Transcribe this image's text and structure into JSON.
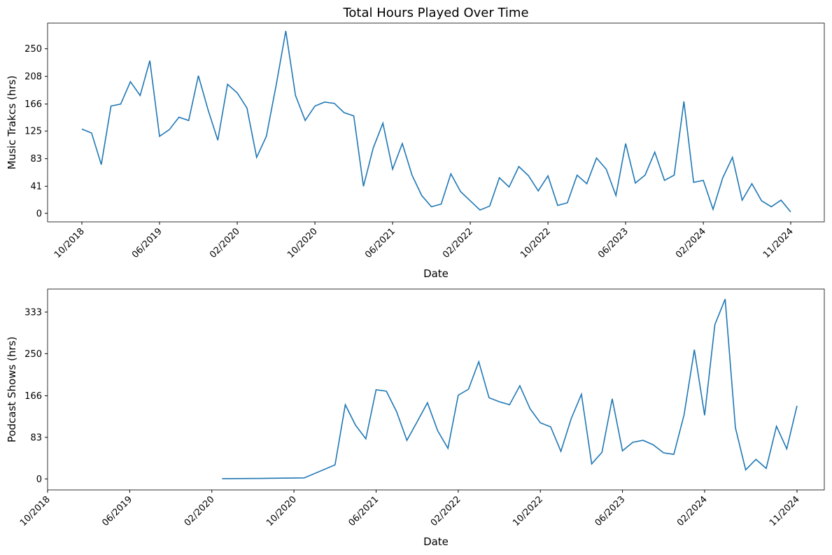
{
  "chart_data": [
    {
      "type": "line",
      "title": "Total Hours Played Over Time",
      "xlabel": "Date",
      "ylabel": "Music Trakcs (hrs)",
      "color": "#1f77b4",
      "x": [
        "10/2018",
        "11/2018",
        "12/2018",
        "01/2019",
        "02/2019",
        "03/2019",
        "04/2019",
        "05/2019",
        "06/2019",
        "07/2019",
        "08/2019",
        "09/2019",
        "10/2019",
        "11/2019",
        "12/2019",
        "01/2020",
        "02/2020",
        "03/2020",
        "04/2020",
        "05/2020",
        "06/2020",
        "07/2020",
        "08/2020",
        "09/2020",
        "10/2020",
        "11/2020",
        "12/2020",
        "01/2021",
        "02/2021",
        "03/2021",
        "04/2021",
        "05/2021",
        "06/2021",
        "07/2021",
        "08/2021",
        "09/2021",
        "10/2021",
        "11/2021",
        "12/2021",
        "01/2022",
        "02/2022",
        "03/2022",
        "04/2022",
        "05/2022",
        "06/2022",
        "07/2022",
        "08/2022",
        "09/2022",
        "10/2022",
        "11/2022",
        "12/2022",
        "01/2023",
        "02/2023",
        "03/2023",
        "04/2023",
        "05/2023",
        "06/2023",
        "07/2023",
        "08/2023",
        "09/2023",
        "10/2023",
        "11/2023",
        "12/2023",
        "01/2024",
        "02/2024",
        "03/2024",
        "04/2024",
        "05/2024",
        "06/2024",
        "07/2024",
        "08/2024",
        "09/2024",
        "10/2024",
        "11/2024"
      ],
      "values": [
        128,
        122,
        74,
        163,
        166,
        200,
        179,
        232,
        117,
        127,
        146,
        141,
        209,
        157,
        111,
        196,
        183,
        160,
        85,
        117,
        194,
        277,
        179,
        141,
        163,
        169,
        167,
        153,
        148,
        41,
        99,
        137,
        67,
        106,
        58,
        27,
        10,
        14,
        60,
        33,
        19,
        5,
        11,
        54,
        40,
        71,
        57,
        34,
        57,
        12,
        16,
        58,
        45,
        84,
        67,
        27,
        106,
        46,
        58,
        93,
        50,
        58,
        170,
        47,
        50,
        6,
        54,
        85,
        20,
        45,
        19,
        10,
        20,
        2
      ],
      "xticks": [
        "10/2018",
        "06/2019",
        "02/2020",
        "10/2020",
        "06/2021",
        "02/2022",
        "10/2022",
        "06/2023",
        "02/2024",
        "11/2024"
      ],
      "ylim": [
        -13,
        289
      ],
      "yticks": [
        0,
        41,
        83,
        125,
        166,
        208,
        250
      ]
    },
    {
      "type": "line",
      "xlabel": "Date",
      "ylabel": "Podcast Shows (hrs)",
      "color": "#1f77b4",
      "x": [
        "03/2020",
        "07/2020",
        "11/2020",
        "02/2021",
        "03/2021",
        "04/2021",
        "05/2021",
        "06/2021",
        "07/2021",
        "08/2021",
        "09/2021",
        "10/2021",
        "11/2021",
        "12/2021",
        "01/2022",
        "02/2022",
        "03/2022",
        "04/2022",
        "05/2022",
        "06/2022",
        "07/2022",
        "08/2022",
        "09/2022",
        "10/2022",
        "11/2022",
        "12/2022",
        "01/2023",
        "02/2023",
        "03/2023",
        "04/2023",
        "05/2023",
        "06/2023",
        "07/2023",
        "08/2023",
        "09/2023",
        "10/2023",
        "11/2023",
        "12/2023",
        "01/2024",
        "02/2024",
        "03/2024",
        "04/2024",
        "05/2024",
        "06/2024",
        "07/2024",
        "08/2024",
        "09/2024",
        "10/2024",
        "11/2024"
      ],
      "values": [
        0.5,
        1,
        2,
        28,
        148,
        107,
        80,
        178,
        175,
        134,
        77,
        114,
        152,
        96,
        61,
        167,
        179,
        234,
        162,
        154,
        148,
        186,
        140,
        112,
        104,
        55,
        120,
        169,
        30,
        53,
        160,
        56,
        73,
        77,
        68,
        52,
        49,
        128,
        258,
        127,
        308,
        359,
        102,
        18,
        39,
        21,
        105,
        60,
        146
      ],
      "xticks": [
        "10/2018",
        "06/2019",
        "02/2020",
        "10/2020",
        "06/2021",
        "02/2022",
        "10/2022",
        "06/2023",
        "02/2024",
        "11/2024"
      ],
      "ylim": [
        -22,
        379
      ],
      "yticks": [
        0,
        83,
        166,
        250,
        333
      ]
    }
  ]
}
